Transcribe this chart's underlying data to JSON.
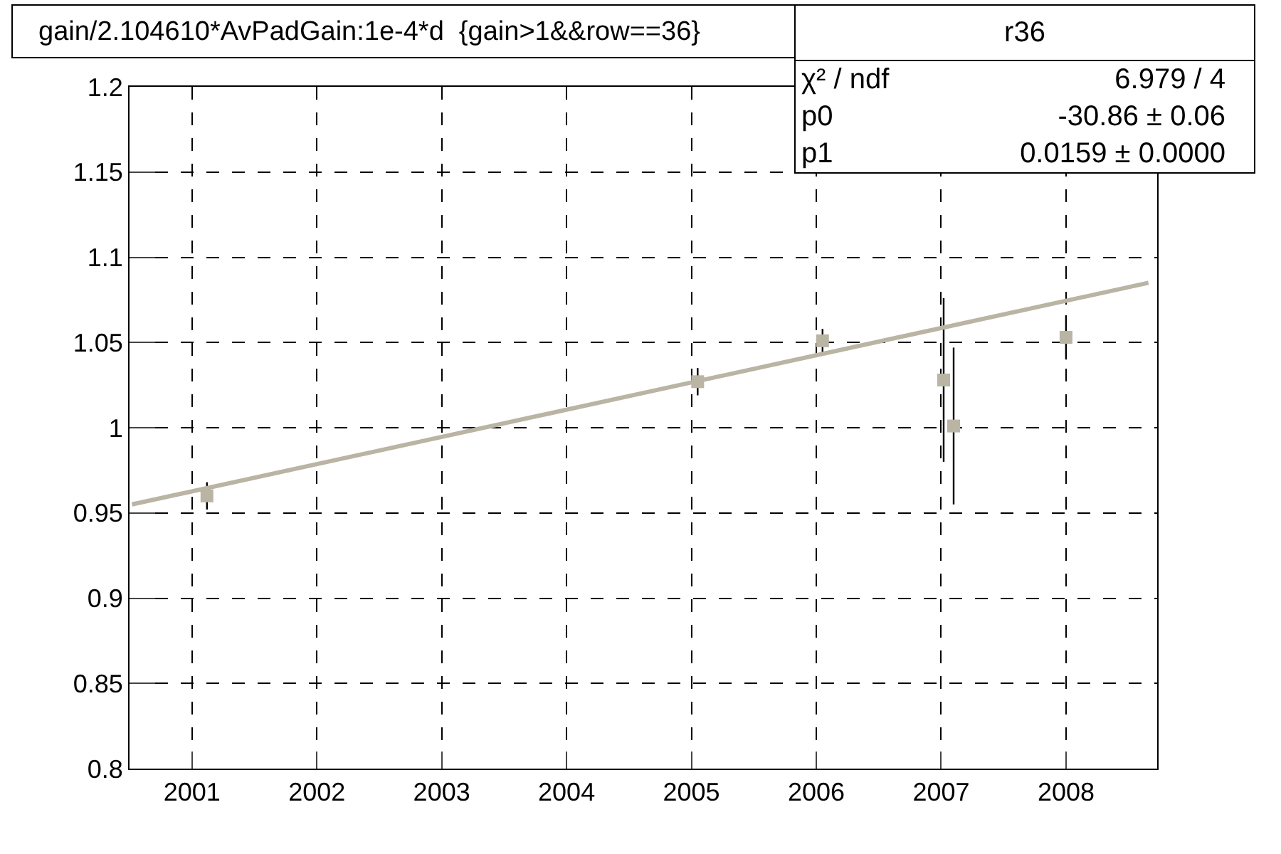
{
  "chart_data": {
    "type": "scatter",
    "title": "gain/2.104610*AvPadGain:1e-4*d  {gain>1&&row==36}",
    "annotations": [
      "r36",
      "χ² / ndf",
      "6.979 / 4",
      "p0",
      "-30.86 ± 0.06",
      "p1",
      "0.0159 ± 0.0000"
    ],
    "series": [
      {
        "color": "#bab4a4",
        "marker": "square",
        "x": [
          2001.12,
          2005.05,
          2006.05,
          2007.02,
          2007.1,
          2008.0
        ],
        "values": [
          0.96,
          1.027,
          1.051,
          1.028,
          1.001,
          1.053
        ],
        "errors": [
          0.008,
          0.008,
          0.007,
          0.048,
          0.046,
          0.013
        ]
      },
      {
        "type": "line",
        "marker": "none",
        "color": "#bab4a4",
        "x": [
          2000.52,
          2008.66
        ],
        "values": [
          0.955,
          1.085
        ]
      }
    ],
    "grid": true,
    "legend": false,
    "xlim": [
      2000.5,
      2008.73
    ],
    "xticks": [
      2001,
      2002,
      2003,
      2004,
      2005,
      2006,
      2007,
      2008
    ],
    "ylim": [
      0.8,
      1.2
    ],
    "yticks": [
      0.8,
      0.85,
      0.9,
      0.95,
      1,
      1.05,
      1.1,
      1.15,
      1.2
    ]
  }
}
